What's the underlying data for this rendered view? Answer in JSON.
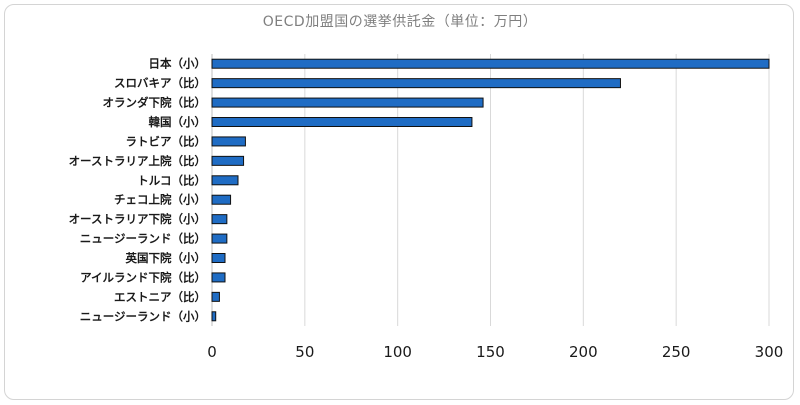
{
  "chart_data": {
    "type": "bar",
    "orientation": "horizontal",
    "title": "OECD加盟国の選挙供託金（単位：万円）",
    "categories": [
      "日本（小）",
      "スロバキア（比）",
      "オランダ下院（比）",
      "韓国（小）",
      "ラトビア（比）",
      "オーストラリア上院（比）",
      "トルコ（比）",
      "チェコ上院（小）",
      "オーストラリア下院（小）",
      "ニュージーランド（比）",
      "英国下院（小）",
      "アイルランド下院（比）",
      "エストニア（比）",
      "ニュージーランド（小）"
    ],
    "values": [
      300,
      220,
      146,
      140,
      18,
      17,
      14,
      10,
      8,
      8,
      7,
      7,
      4,
      2
    ],
    "xlim": [
      0,
      300
    ],
    "xticks": [
      0,
      50,
      100,
      150,
      200,
      250,
      300
    ],
    "grid": true,
    "colors": {
      "bar": "#1f6cc4",
      "bar_edge": "#111111",
      "grid": "#d9d9d9"
    }
  }
}
